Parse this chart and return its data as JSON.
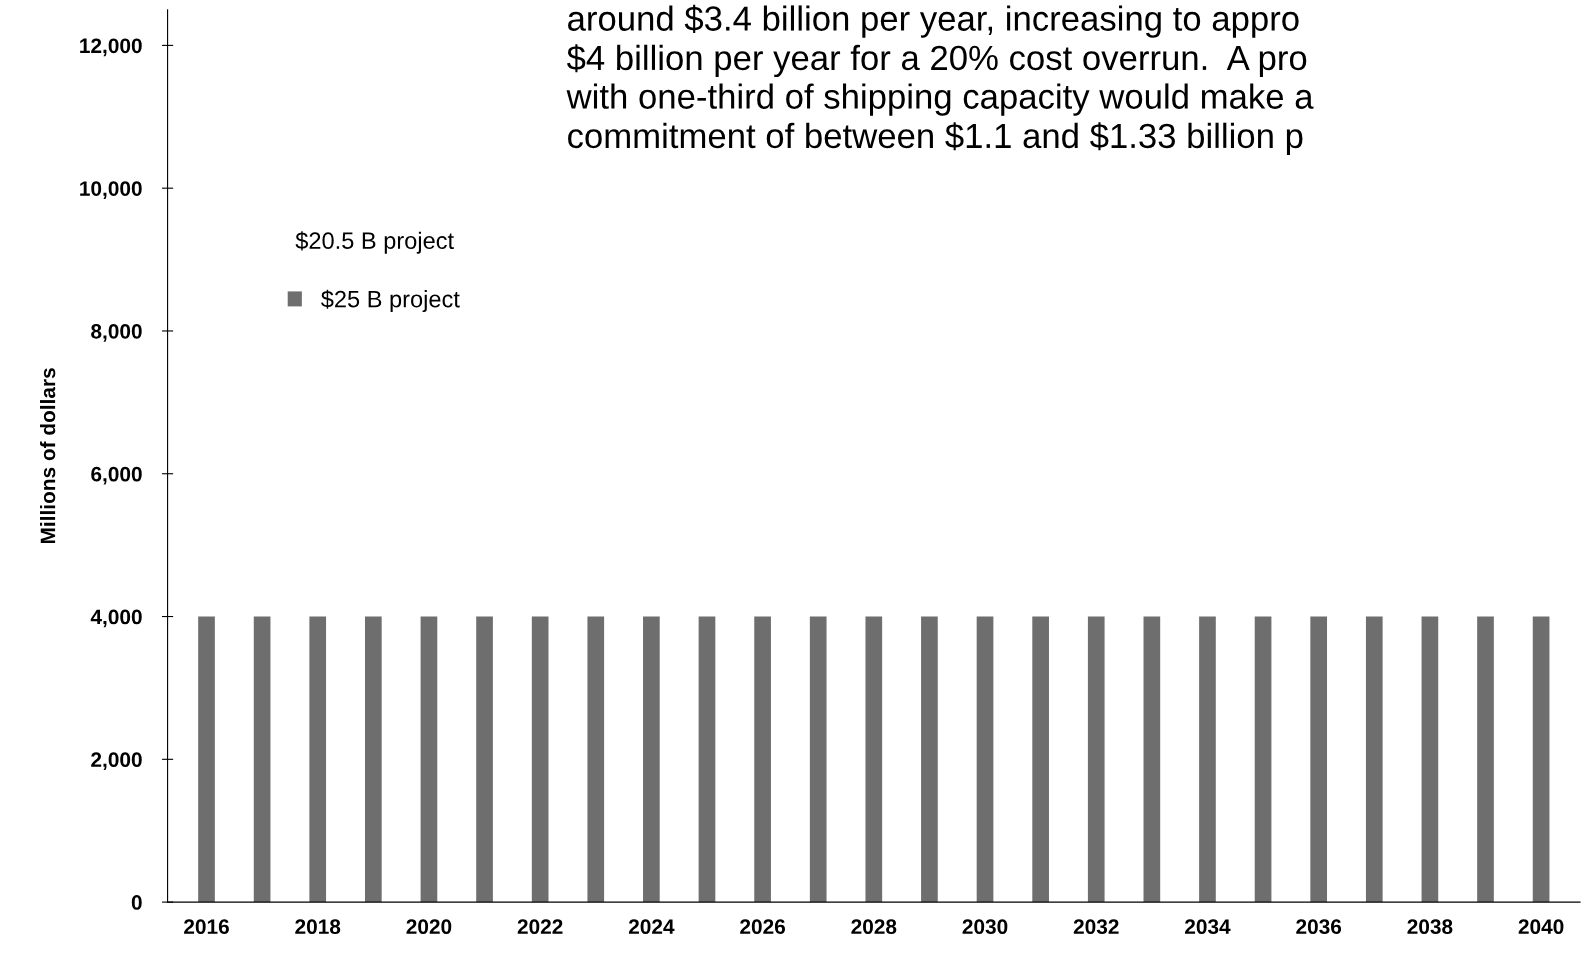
{
  "chart_data": {
    "type": "bar",
    "ylabel": "Millions of dollars",
    "categories": [
      "2016",
      null,
      "2018",
      null,
      "2020",
      null,
      "2022",
      null,
      "2024",
      null,
      "2026",
      null,
      "2028",
      null,
      "2030",
      null,
      "2032",
      null,
      "2034",
      null,
      "2036",
      null,
      "2038",
      null,
      "2040"
    ],
    "series": [
      {
        "name": "$25 B project",
        "color": "#6e6e6e",
        "values": [
          4000,
          4000,
          4000,
          4000,
          4000,
          4000,
          4000,
          4000,
          4000,
          4000,
          4000,
          4000,
          4000,
          4000,
          4000,
          4000,
          4000,
          4000,
          4000,
          4000,
          4000,
          4000,
          4000,
          4000,
          4000
        ]
      }
    ],
    "ylim": [
      0,
      12500
    ],
    "yticks": [
      {
        "value": 0,
        "label": "0"
      },
      {
        "value": 2000,
        "label": "2,000"
      },
      {
        "value": 4000,
        "label": "4,000"
      },
      {
        "value": 6000,
        "label": "6,000"
      },
      {
        "value": 8000,
        "label": "8,000"
      },
      {
        "value": 10000,
        "label": "10,000"
      },
      {
        "value": 12000,
        "label": "12,000"
      }
    ],
    "grid": false,
    "legend": "top left",
    "annotations": [
      "around $3.4 billion per year, increasing to appro\n$4 billion per year for a 20% cost overrun.  A pro\nwith one-third of shipping capacity would make a\ncommitment of between $1.1 and $1.33 billion p",
      "$20.5 B project"
    ]
  }
}
